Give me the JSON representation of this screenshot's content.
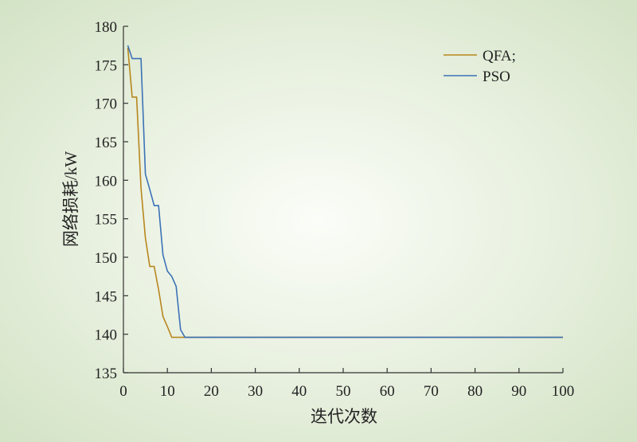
{
  "chart_data": {
    "type": "line",
    "title": "",
    "xlabel": "迭代次数",
    "ylabel": "网络损耗/kW",
    "xlim": [
      0,
      100
    ],
    "ylim": [
      135,
      180
    ],
    "xticks": [
      0,
      10,
      20,
      30,
      40,
      50,
      60,
      70,
      80,
      90,
      100
    ],
    "yticks": [
      135,
      140,
      145,
      150,
      155,
      160,
      165,
      170,
      175,
      180
    ],
    "grid": false,
    "legend_position": "top-right",
    "series": [
      {
        "name": "QFA;",
        "color": "#b8861e",
        "points": [
          [
            1,
            177.2
          ],
          [
            2,
            170.8
          ],
          [
            3,
            170.8
          ],
          [
            4,
            159.0
          ],
          [
            5,
            152.5
          ],
          [
            6,
            148.8
          ],
          [
            7,
            148.8
          ],
          [
            8,
            145.8
          ],
          [
            9,
            142.3
          ],
          [
            10,
            141.0
          ],
          [
            11,
            139.6
          ],
          [
            12,
            139.6
          ],
          [
            100,
            139.6
          ]
        ]
      },
      {
        "name": "PSO",
        "color": "#3c72b6",
        "points": [
          [
            1,
            177.5
          ],
          [
            2,
            175.8
          ],
          [
            3,
            175.8
          ],
          [
            4,
            175.8
          ],
          [
            5,
            160.8
          ],
          [
            6,
            158.8
          ],
          [
            7,
            156.7
          ],
          [
            8,
            156.7
          ],
          [
            9,
            150.3
          ],
          [
            10,
            148.2
          ],
          [
            11,
            147.5
          ],
          [
            12,
            146.2
          ],
          [
            13,
            140.6
          ],
          [
            14,
            139.6
          ],
          [
            100,
            139.6
          ]
        ]
      }
    ]
  }
}
